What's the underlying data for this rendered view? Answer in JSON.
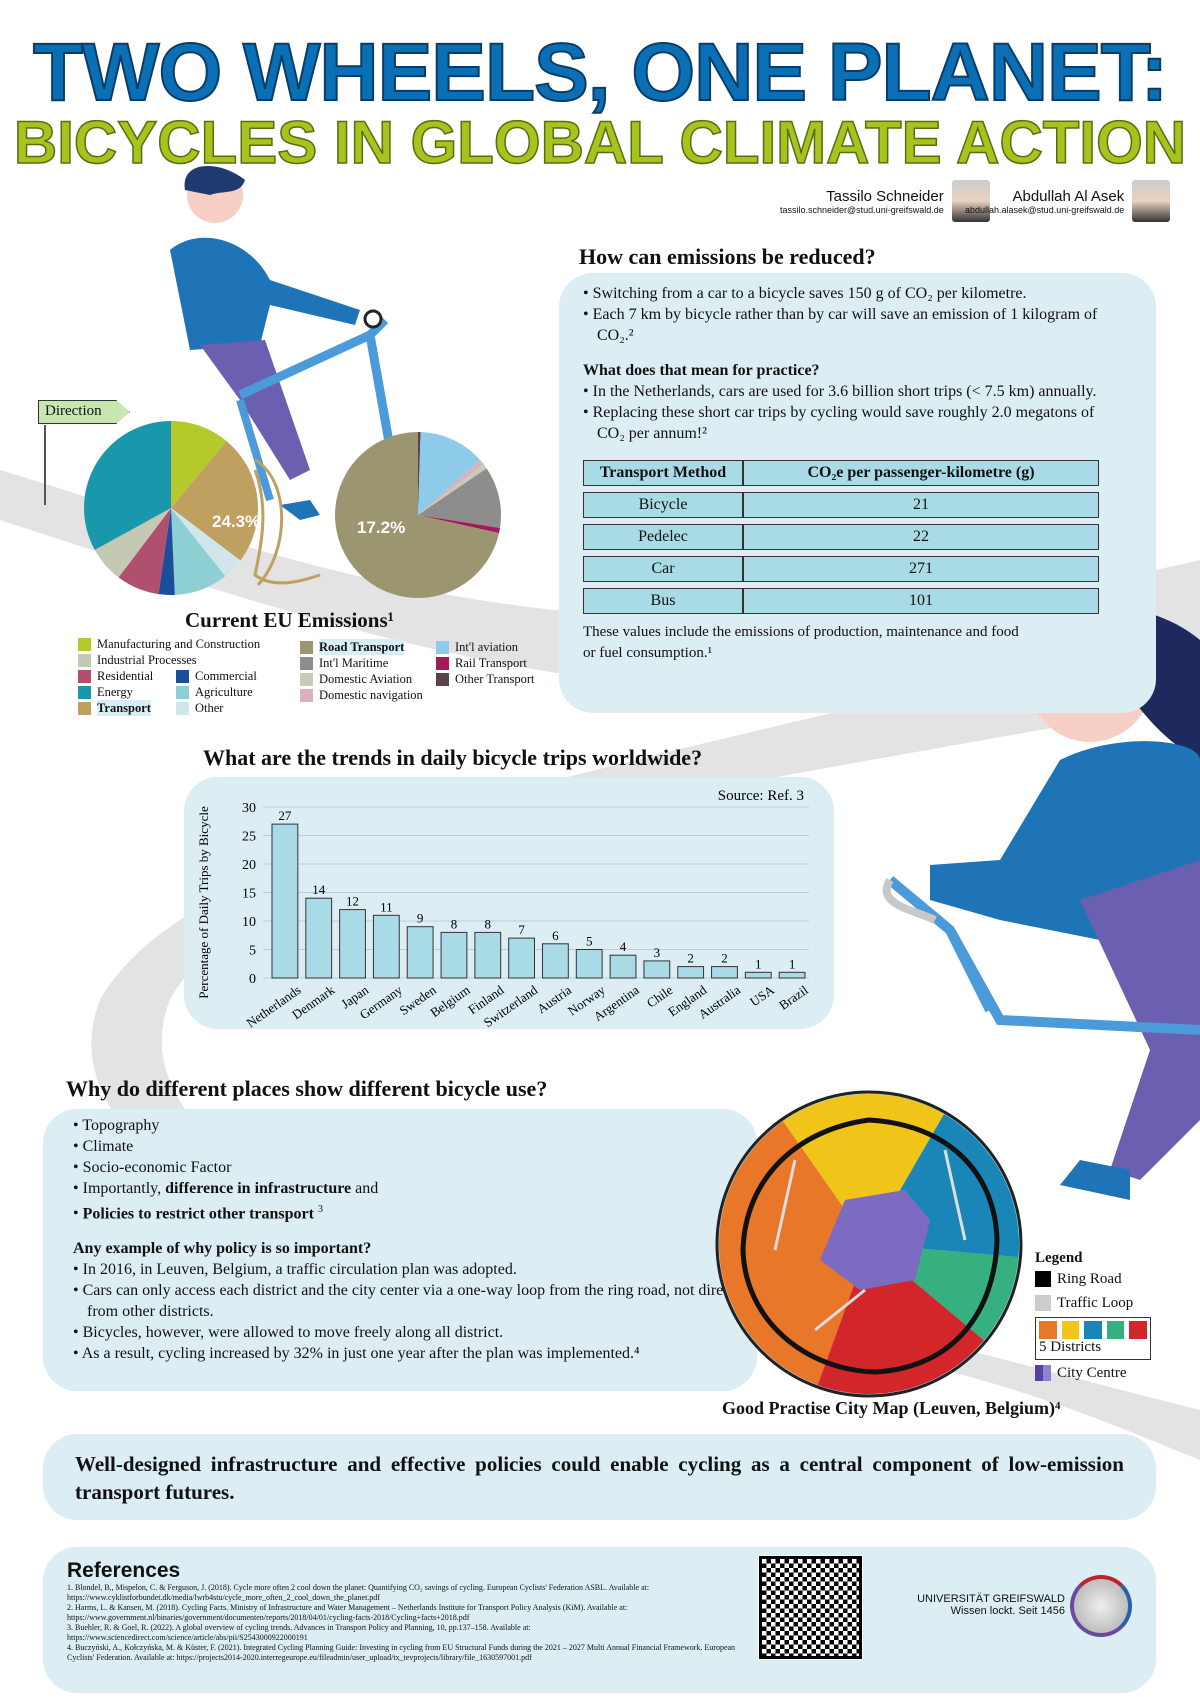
{
  "title": {
    "line1": "TWO WHEELS, ONE PLANET:",
    "line2": "BICYCLES IN GLOBAL CLIMATE ACTION"
  },
  "authors": [
    {
      "name": "Tassilo Schneider",
      "email": "tassilo.schneider@stud.uni-greifswald.de"
    },
    {
      "name": "Abdullah Al Asek",
      "email": "abdullah.alasek@stud.uni-greifswald.de"
    }
  ],
  "direction_sign": "Direction",
  "emissions": {
    "heading": "How can emissions be reduced?",
    "bullets": [
      "Switching from a car to a bicycle saves 150 g of CO₂ per kilometre.",
      "Each 7 km by bicycle rather than by car will save an emission of 1 kilogram of CO₂.²"
    ],
    "practice_heading": "What does that mean for practice?",
    "practice_bullets": [
      "In the Netherlands, cars are used for 3.6 billion short trips (< 7.5 km) annually.",
      "Replacing these short car trips by cycling would save roughly 2.0 megatons of CO₂ per annum!²"
    ],
    "table": {
      "headers": [
        "Transport Method",
        "CO₂e per passenger-kilometre (g)"
      ],
      "rows": [
        [
          "Bicycle",
          "21"
        ],
        [
          "Pedelec",
          "22"
        ],
        [
          "Car",
          "271"
        ],
        [
          "Bus",
          "101"
        ]
      ]
    },
    "note": "These values include the emissions of production, maintenance and food or fuel consumption.¹"
  },
  "eu": {
    "heading": "Current EU Emissions¹",
    "left_pie_label": "24.3%",
    "right_pie_label": "17.2%",
    "left_pie": [
      {
        "name": "Manufacturing and Construction",
        "value": 11,
        "color": "#b5c92a"
      },
      {
        "name": "Transport",
        "value": 24.3,
        "color": "#c0a060"
      },
      {
        "name": "Other",
        "value": 4,
        "color": "#cfe6ea"
      },
      {
        "name": "Agriculture",
        "value": 10,
        "color": "#8ecfd3"
      },
      {
        "name": "Commercial",
        "value": 3,
        "color": "#1a4e9a"
      },
      {
        "name": "Residential",
        "value": 8,
        "color": "#b0506e"
      },
      {
        "name": "Industrial Processes",
        "value": 6.7,
        "color": "#c5c9b3"
      },
      {
        "name": "Energy",
        "value": 33,
        "color": "#1a98ab"
      }
    ],
    "right_pie": [
      {
        "name": "Other Transport",
        "value": 0.5,
        "color": "#5a4248"
      },
      {
        "name": "Int'l aviation",
        "value": 13,
        "color": "#8ecbe9"
      },
      {
        "name": "Domestic navigation",
        "value": 1,
        "color": "#d8b0be"
      },
      {
        "name": "Domestic Aviation",
        "value": 1,
        "color": "#c7cbb7"
      },
      {
        "name": "Int'l Maritime",
        "value": 12,
        "color": "#8d8d8d"
      },
      {
        "name": "Rail Transport",
        "value": 1,
        "color": "#a4195a"
      },
      {
        "name": "Road Transport",
        "value": 71.5,
        "color": "#9c9670"
      }
    ],
    "legend_col1": [
      {
        "label": "Manufacturing and Construction",
        "color": "#b5c92a"
      },
      {
        "label": "Industrial Processes",
        "color": "#c5c9b3"
      }
    ],
    "legend_pairs": [
      [
        {
          "label": "Residential",
          "color": "#b0506e"
        },
        {
          "label": "Commercial",
          "color": "#1a4e9a"
        }
      ],
      [
        {
          "label": "Energy",
          "color": "#1a98ab"
        },
        {
          "label": "Agriculture",
          "color": "#8ecfd3"
        }
      ],
      [
        {
          "label": "Transport",
          "color": "#c0a060"
        },
        {
          "label": "Other",
          "color": "#cfe6ea"
        }
      ]
    ],
    "legend_col3": [
      {
        "label": "Road Transport",
        "color": "#9c9670"
      },
      {
        "label": "Int'l Maritime",
        "color": "#8d8d8d"
      },
      {
        "label": "Domestic Aviation",
        "color": "#c7cbb7"
      },
      {
        "label": "Domestic navigation",
        "color": "#d8b0be"
      }
    ],
    "legend_col4": [
      {
        "label": "Int'l aviation",
        "color": "#8ecbe9"
      },
      {
        "label": "Rail Transport",
        "color": "#a4195a"
      },
      {
        "label": "Other Transport",
        "color": "#5a4248"
      }
    ]
  },
  "trends": {
    "heading": "What are the trends in daily bicycle trips worldwide?"
  },
  "chart_data": {
    "type": "bar",
    "title": "",
    "source": "Source: Ref. 3",
    "ylabel": "Percentage of Daily Trips by Bicycle",
    "xlabel": "",
    "ylim": [
      0,
      30
    ],
    "yticks": [
      "0",
      "5",
      "10",
      "15",
      "20",
      "25",
      "30"
    ],
    "categories": [
      "Netherlands",
      "Denmark",
      "Japan",
      "Germany",
      "Sweden",
      "Belgium",
      "Finland",
      "Switzerland",
      "Austria",
      "Norway",
      "Argentina",
      "Chile",
      "England",
      "Australia",
      "USA",
      "Brazil"
    ],
    "values": [
      27,
      14,
      12,
      11,
      9,
      8,
      8,
      7,
      6,
      5,
      4,
      3,
      2,
      2,
      1,
      1
    ],
    "grid": true,
    "bar_color": "#a9dbe7"
  },
  "why": {
    "heading": "Why do different places show different bicycle use?",
    "bullets": [
      "Topography",
      "Climate",
      "Socio-economic Factor"
    ],
    "b4_pre": "Importantly, ",
    "b4_bold": "difference in infrastructure",
    "b4_post": " and",
    "b5_bold": "Policies to restrict other transport",
    "b5_sup": "3",
    "example_heading": "Any example of why policy is so important?",
    "example_bullets": [
      "In 2016, in Leuven, Belgium, a traffic circulation plan was adopted.",
      "Cars can only access each district and the city center via a one-way loop from the ring road, not directly from other districts.",
      "Bicycles, however, were allowed to move freely along all district.",
      "As a result, cycling increased by 32% in just one year after the plan was implemented.⁴"
    ]
  },
  "map": {
    "caption": "Good Practise City Map (Leuven, Belgium)⁴",
    "legend_title": "Legend",
    "ring": "Ring Road",
    "loop": "Traffic Loop",
    "districts": "5 Districts",
    "centre": "City Centre",
    "district_colors": [
      "#e8772a",
      "#f0c419",
      "#1a86b8",
      "#36b07f",
      "#d3262b"
    ]
  },
  "conclusion": "Well-designed infrastructure and effective policies could enable cycling as a central component of low-emission transport futures.",
  "references": {
    "heading": "References",
    "items": [
      "1. Blondel, B., Mispelon, C. & Ferguson, J. (2018). Cycle more often 2 cool down the planet: Quantifying CO₂ savings of cycling. European Cyclists' Federation ASBL. Available at: https://www.cyklistforbundet.dk/media/lwrb4stu/cycle_more_often_2_cool_down_the_planet.pdf",
      "2. Harms, L. & Kansen, M. (2018). Cycling Facts. Ministry of Infrastructure and Water Management – Netherlands Institute for Transport Policy Analysis (KiM). Available at: https://www.government.nl/binaries/government/documenten/reports/2018/04/01/cycling-facts-2018/Cycling+facts+2018.pdf",
      "3. Buehler, R. & Goel, R. (2022). A global overview of cycling trends. Advances in Transport Policy and Planning, 10, pp.137–158. Available at: https://www.sciencedirect.com/science/article/abs/pii/S2543000922000191",
      "4. Buczyński, A., Kołczyńska, M. & Küster, F. (2021). Integrated Cycling Planning Guide: Investing in cycling from EU Structural Funds during the 2021 – 2027 Multi Annual Financial Framework. European Cyclists' Federation. Available at: https://projects2014-2020.interregeurope.eu/fileadmin/user_upload/tx_tevprojects/library/file_1630597001.pdf"
    ]
  },
  "university": {
    "name": "UNIVERSITÄT GREIFSWALD",
    "motto": "Wissen lockt. Seit 1456"
  }
}
